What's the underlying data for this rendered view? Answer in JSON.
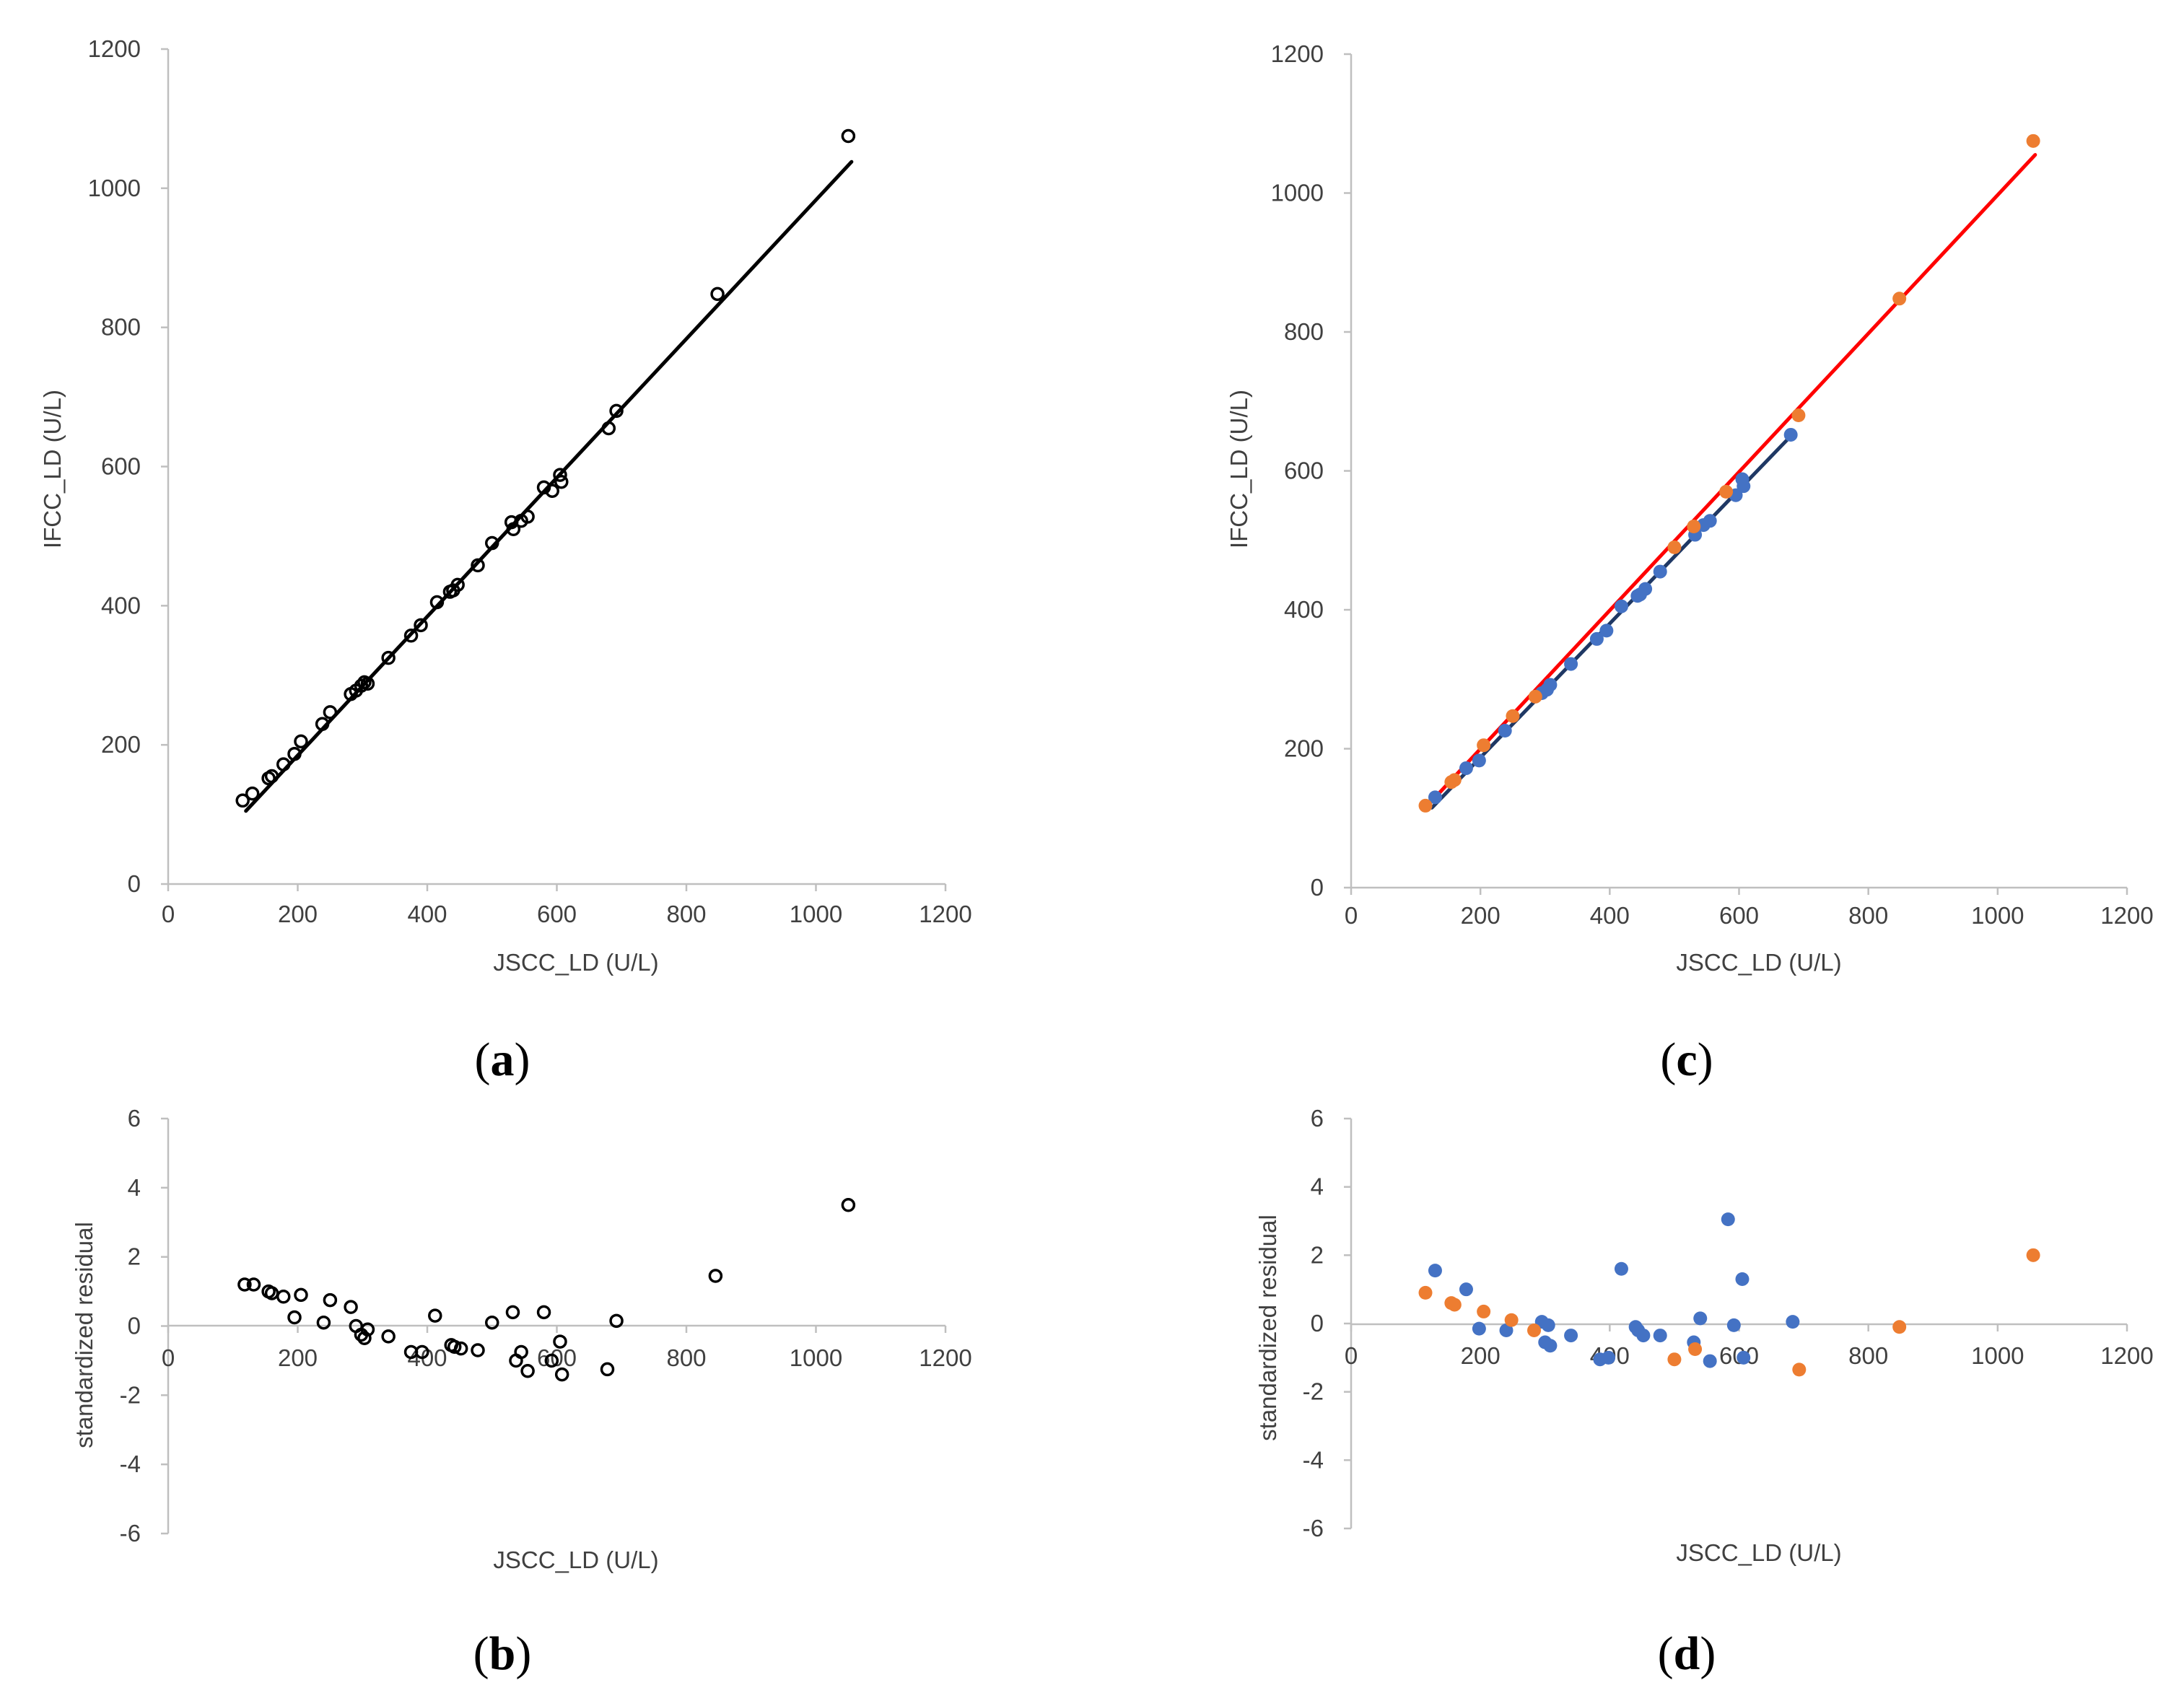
{
  "colors": {
    "axis": "#bfbfbf",
    "tick_text": "#404040",
    "open_marker": "#000000",
    "fit_line_a": "#000000",
    "blue": "#4472c4",
    "orange": "#ed7d31",
    "red_line": "#ff0000",
    "navy_line": "#1f3864"
  },
  "chart_data": [
    {
      "id": "a",
      "panel_label": "a",
      "type": "scatter",
      "xlabel": "JSCC_LD (U/L)",
      "ylabel": "IFCC_LD (U/L)",
      "xlim": [
        0,
        1200
      ],
      "ylim": [
        0,
        1200
      ],
      "x_ticks": [
        "0",
        "200",
        "400",
        "600",
        "800",
        "1000",
        "1200"
      ],
      "y_ticks": [
        "0",
        "200",
        "400",
        "600",
        "800",
        "1000",
        "1200"
      ],
      "series": [
        {
          "name": "samples",
          "marker": "open-circle",
          "points": [
            [
              115,
              120
            ],
            [
              130,
              130
            ],
            [
              155,
              152
            ],
            [
              160,
              155
            ],
            [
              178,
              172
            ],
            [
              195,
              187
            ],
            [
              205,
              205
            ],
            [
              238,
              230
            ],
            [
              250,
              247
            ],
            [
              282,
              273
            ],
            [
              290,
              278
            ],
            [
              298,
              285
            ],
            [
              303,
              290
            ],
            [
              308,
              288
            ],
            [
              340,
              325
            ],
            [
              375,
              357
            ],
            [
              390,
              372
            ],
            [
              415,
              405
            ],
            [
              435,
              420
            ],
            [
              440,
              422
            ],
            [
              447,
              430
            ],
            [
              478,
              458
            ],
            [
              500,
              490
            ],
            [
              530,
              520
            ],
            [
              533,
              510
            ],
            [
              545,
              522
            ],
            [
              555,
              528
            ],
            [
              580,
              570
            ],
            [
              593,
              565
            ],
            [
              605,
              588
            ],
            [
              607,
              578
            ],
            [
              680,
              655
            ],
            [
              692,
              680
            ],
            [
              848,
              848
            ],
            [
              1050,
              1075
            ]
          ]
        }
      ],
      "fit_lines": [
        {
          "name": "regression",
          "from": [
            120,
            105
          ],
          "to": [
            1055,
            1038
          ]
        }
      ]
    },
    {
      "id": "b",
      "panel_label": "b",
      "type": "scatter",
      "xlabel": "JSCC_LD (U/L)",
      "ylabel": "standardized residual",
      "xlim": [
        0,
        1200
      ],
      "ylim": [
        -6,
        6
      ],
      "x_ticks": [
        "0",
        "200",
        "400",
        "600",
        "800",
        "1000",
        "1200"
      ],
      "y_ticks": [
        "-6",
        "-4",
        "-2",
        "0",
        "2",
        "4",
        "6"
      ],
      "series": [
        {
          "name": "residuals",
          "marker": "open-circle",
          "points": [
            [
              118,
              1.2
            ],
            [
              132,
              1.2
            ],
            [
              155,
              1.0
            ],
            [
              160,
              0.95
            ],
            [
              178,
              0.85
            ],
            [
              195,
              0.25
            ],
            [
              205,
              0.9
            ],
            [
              240,
              0.1
            ],
            [
              250,
              0.75
            ],
            [
              282,
              0.55
            ],
            [
              290,
              0.0
            ],
            [
              298,
              -0.25
            ],
            [
              303,
              -0.35
            ],
            [
              308,
              -0.1
            ],
            [
              340,
              -0.3
            ],
            [
              375,
              -0.75
            ],
            [
              392,
              -0.75
            ],
            [
              412,
              0.3
            ],
            [
              437,
              -0.55
            ],
            [
              442,
              -0.6
            ],
            [
              452,
              -0.65
            ],
            [
              478,
              -0.7
            ],
            [
              500,
              0.1
            ],
            [
              532,
              0.4
            ],
            [
              537,
              -1.0
            ],
            [
              545,
              -0.75
            ],
            [
              555,
              -1.3
            ],
            [
              580,
              0.4
            ],
            [
              592,
              -1.0
            ],
            [
              605,
              -0.45
            ],
            [
              608,
              -1.4
            ],
            [
              678,
              -1.25
            ],
            [
              692,
              0.15
            ],
            [
              845,
              1.45
            ],
            [
              1050,
              3.5
            ]
          ]
        }
      ]
    },
    {
      "id": "c",
      "panel_label": "c",
      "type": "scatter",
      "xlabel": "JSCC_LD (U/L)",
      "ylabel": "IFCC_LD (U/L)",
      "xlim": [
        0,
        1200
      ],
      "ylim": [
        0,
        1200
      ],
      "x_ticks": [
        "0",
        "200",
        "400",
        "600",
        "800",
        "1000",
        "1200"
      ],
      "y_ticks": [
        "0",
        "200",
        "400",
        "600",
        "800",
        "1000",
        "1200"
      ],
      "series": [
        {
          "name": "blue group",
          "color": "#4472c4",
          "points": [
            [
              130,
              130
            ],
            [
              178,
              172
            ],
            [
              198,
              183
            ],
            [
              238,
              226
            ],
            [
              295,
              280
            ],
            [
              303,
              285
            ],
            [
              308,
              292
            ],
            [
              340,
              322
            ],
            [
              380,
              358
            ],
            [
              395,
              370
            ],
            [
              418,
              405
            ],
            [
              443,
              420
            ],
            [
              447,
              422
            ],
            [
              455,
              430
            ],
            [
              478,
              455
            ],
            [
              532,
              508
            ],
            [
              545,
              522
            ],
            [
              555,
              528
            ],
            [
              595,
              565
            ],
            [
              605,
              588
            ],
            [
              607,
              578
            ],
            [
              680,
              652
            ]
          ]
        },
        {
          "name": "orange group",
          "color": "#ed7d31",
          "points": [
            [
              115,
              118
            ],
            [
              155,
              152
            ],
            [
              160,
              155
            ],
            [
              205,
              205
            ],
            [
              250,
              247
            ],
            [
              285,
              275
            ],
            [
              500,
              490
            ],
            [
              530,
              520
            ],
            [
              580,
              570
            ],
            [
              692,
              680
            ],
            [
              848,
              848
            ],
            [
              1055,
              1075
            ]
          ]
        }
      ],
      "fit_lines": [
        {
          "name": "red regression",
          "color": "#ff0000",
          "from": [
            120,
            120
          ],
          "to": [
            1058,
            1055
          ]
        },
        {
          "name": "navy regression",
          "color": "#1f3864",
          "from": [
            125,
            115
          ],
          "to": [
            682,
            652
          ]
        }
      ]
    },
    {
      "id": "d",
      "panel_label": "d",
      "type": "scatter",
      "xlabel": "JSCC_LD (U/L)",
      "ylabel": "standardized residual",
      "xlim": [
        0,
        1200
      ],
      "ylim": [
        -6,
        6
      ],
      "x_ticks": [
        "0",
        "200",
        "400",
        "600",
        "800",
        "1000",
        "1200"
      ],
      "y_ticks": [
        "-6",
        "-4",
        "-2",
        "0",
        "2",
        "4",
        "6"
      ],
      "series": [
        {
          "name": "blue group",
          "color": "#4472c4",
          "points": [
            [
              130,
              1.55
            ],
            [
              178,
              1.0
            ],
            [
              198,
              -0.15
            ],
            [
              240,
              -0.2
            ],
            [
              295,
              0.05
            ],
            [
              300,
              -0.55
            ],
            [
              305,
              -0.05
            ],
            [
              308,
              -0.65
            ],
            [
              340,
              -0.35
            ],
            [
              385,
              -1.05
            ],
            [
              398,
              -1.0
            ],
            [
              418,
              1.6
            ],
            [
              440,
              -0.1
            ],
            [
              444,
              -0.2
            ],
            [
              452,
              -0.35
            ],
            [
              478,
              -0.35
            ],
            [
              530,
              -0.55
            ],
            [
              540,
              0.15
            ],
            [
              555,
              -1.1
            ],
            [
              583,
              3.05
            ],
            [
              592,
              -0.05
            ],
            [
              605,
              1.3
            ],
            [
              607,
              -1.0
            ],
            [
              683,
              0.05
            ]
          ]
        },
        {
          "name": "orange group",
          "color": "#ed7d31",
          "points": [
            [
              115,
              0.9
            ],
            [
              155,
              0.6
            ],
            [
              160,
              0.55
            ],
            [
              205,
              0.35
            ],
            [
              248,
              0.1
            ],
            [
              283,
              -0.2
            ],
            [
              500,
              -1.05
            ],
            [
              532,
              -0.75
            ],
            [
              693,
              -1.35
            ],
            [
              848,
              -0.1
            ],
            [
              1055,
              2.0
            ]
          ]
        }
      ]
    }
  ]
}
